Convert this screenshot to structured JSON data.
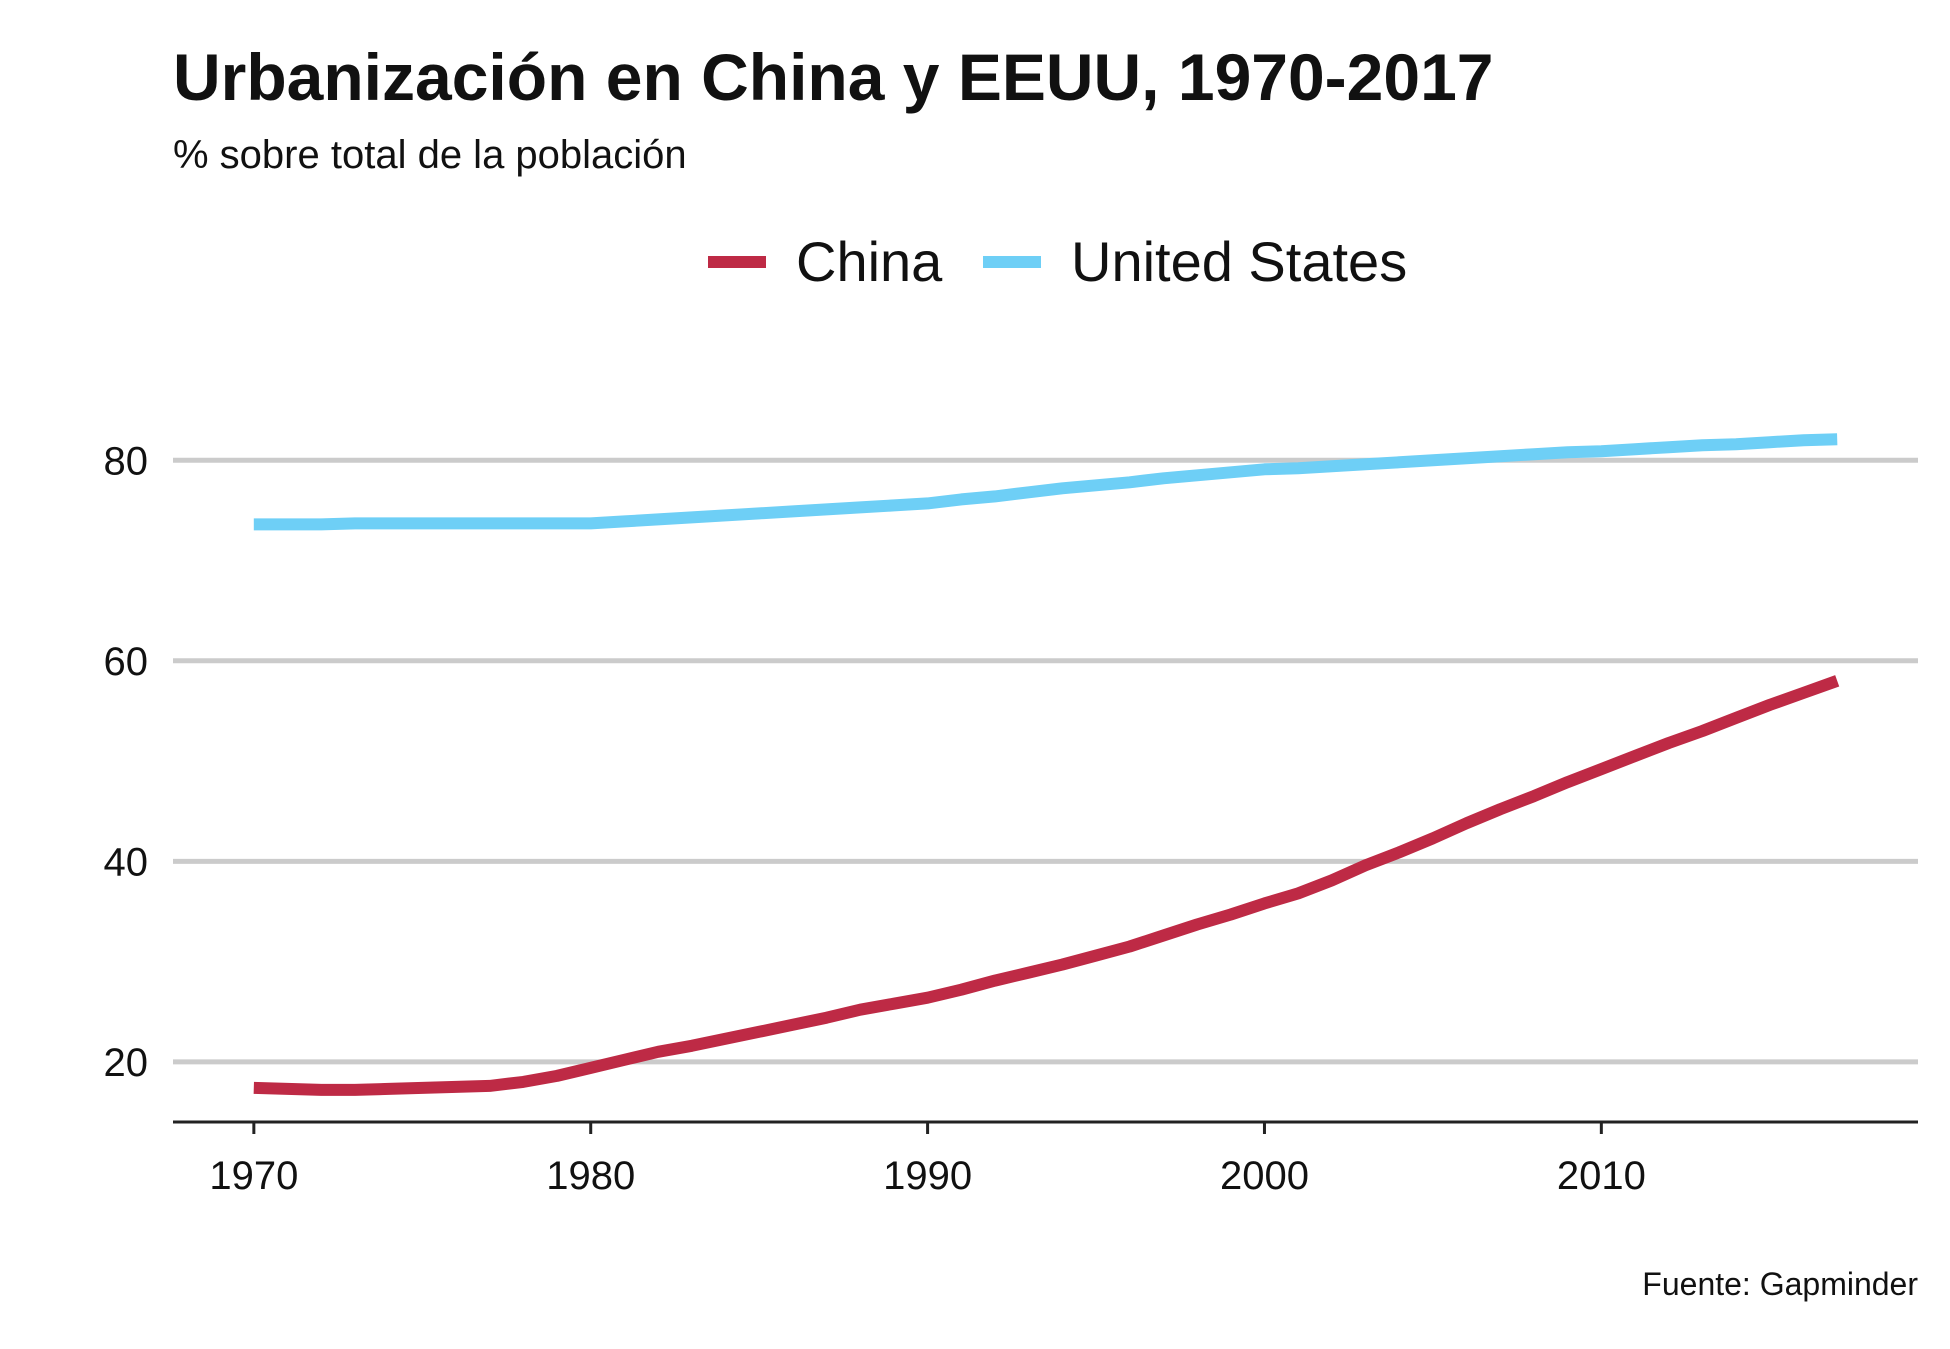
{
  "chart_data": {
    "type": "line",
    "title": "Urbanización en China y EEUU, 1970-2017",
    "subtitle": "% sobre total de la población",
    "caption": "Fuente: Gapminder",
    "xlabel": "",
    "ylabel": "",
    "xlim": [
      1967.6,
      2019.4
    ],
    "ylim": [
      14,
      90
    ],
    "x_ticks": [
      1970,
      1980,
      1990,
      2000,
      2010
    ],
    "y_ticks": [
      20,
      40,
      60,
      80
    ],
    "grid": "horizontal",
    "legend": "top-center",
    "series": [
      {
        "name": "China",
        "color": "#be2a45",
        "x": [
          1970,
          1971,
          1972,
          1973,
          1974,
          1975,
          1976,
          1977,
          1978,
          1979,
          1980,
          1981,
          1982,
          1983,
          1984,
          1985,
          1986,
          1987,
          1988,
          1989,
          1990,
          1991,
          1992,
          1993,
          1994,
          1995,
          1996,
          1997,
          1998,
          1999,
          2000,
          2001,
          2002,
          2003,
          2004,
          2005,
          2006,
          2007,
          2008,
          2009,
          2010,
          2011,
          2012,
          2013,
          2014,
          2015,
          2016,
          2017
        ],
        "y": [
          17.4,
          17.3,
          17.2,
          17.2,
          17.3,
          17.4,
          17.5,
          17.6,
          18.0,
          18.6,
          19.4,
          20.2,
          21.0,
          21.6,
          22.3,
          23.0,
          23.7,
          24.4,
          25.2,
          25.8,
          26.4,
          27.2,
          28.1,
          28.9,
          29.7,
          30.6,
          31.5,
          32.6,
          33.7,
          34.7,
          35.8,
          36.8,
          38.1,
          39.6,
          40.9,
          42.3,
          43.8,
          45.2,
          46.5,
          47.9,
          49.2,
          50.5,
          51.8,
          53.0,
          54.3,
          55.6,
          56.8,
          58.0
        ]
      },
      {
        "name": "United States",
        "color": "#6ecff6",
        "x": [
          1970,
          1971,
          1972,
          1973,
          1974,
          1975,
          1976,
          1977,
          1978,
          1979,
          1980,
          1981,
          1982,
          1983,
          1984,
          1985,
          1986,
          1987,
          1988,
          1989,
          1990,
          1991,
          1992,
          1993,
          1994,
          1995,
          1996,
          1997,
          1998,
          1999,
          2000,
          2001,
          2002,
          2003,
          2004,
          2005,
          2006,
          2007,
          2008,
          2009,
          2010,
          2011,
          2012,
          2013,
          2014,
          2015,
          2016,
          2017
        ],
        "y": [
          73.6,
          73.6,
          73.6,
          73.7,
          73.7,
          73.7,
          73.7,
          73.7,
          73.7,
          73.7,
          73.7,
          73.9,
          74.1,
          74.3,
          74.5,
          74.7,
          74.9,
          75.1,
          75.3,
          75.5,
          75.7,
          76.1,
          76.4,
          76.8,
          77.2,
          77.5,
          77.8,
          78.2,
          78.5,
          78.8,
          79.1,
          79.2,
          79.4,
          79.6,
          79.8,
          80.0,
          80.2,
          80.4,
          80.6,
          80.8,
          80.9,
          81.1,
          81.3,
          81.5,
          81.6,
          81.8,
          82.0,
          82.1
        ]
      }
    ]
  }
}
